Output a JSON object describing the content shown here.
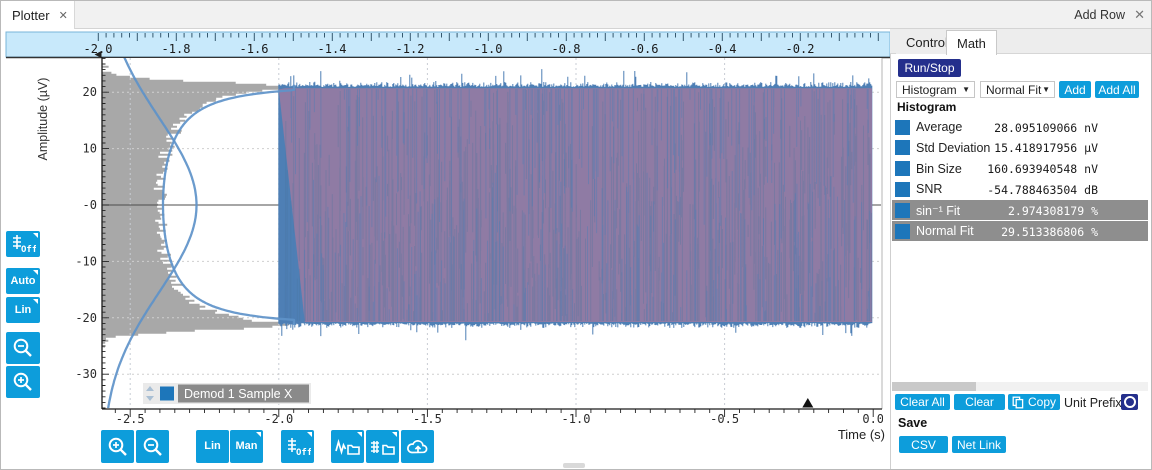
{
  "window": {
    "tab": "Plotter",
    "tab_close": "✕",
    "add_row": "Add Row",
    "add_row_close": "✕"
  },
  "colors": {
    "accent_blue": "#0d9ddb",
    "navy": "#242f8c",
    "ruler_bg": "#c8e9fb",
    "ruler_border": "#79b5d8",
    "histogram_gray": "#9c9c9c",
    "fit_curve_blue": "#5e93c9",
    "signal_purple": "#8f7ba4",
    "signal_blue": "#4e7fb5",
    "series_swatch_blue": "#1d76ba",
    "selected_row_gray": "#8e8e8e",
    "legend_label_bg": "#8a8a8a"
  },
  "left_toolbar": [
    {
      "name": "y-grid-off-button",
      "label": "Off",
      "icon": "grid-icon",
      "flyout": true
    },
    {
      "name": "y-scale-auto-button",
      "label": "Auto",
      "flyout": true
    },
    {
      "name": "y-scale-lin-button",
      "label": "Lin",
      "flyout": true
    },
    {
      "name": "y-zoom-out-button",
      "icon": "zoom-out-icon"
    },
    {
      "name": "y-zoom-in-button",
      "icon": "zoom-in-icon"
    }
  ],
  "bottom_toolbar": [
    {
      "name": "x-zoom-in-button",
      "icon": "zoom-in-icon"
    },
    {
      "name": "x-zoom-out-button",
      "icon": "zoom-out-icon"
    },
    {
      "name": "x-scale-lin-button",
      "label": "Lin"
    },
    {
      "name": "x-scale-man-button",
      "label": "Man",
      "flyout": true
    },
    {
      "name": "x-grid-off-button",
      "label": "Off",
      "icon": "grid-icon",
      "flyout": true
    },
    {
      "name": "export-wave-button",
      "icon": "wave-export-icon",
      "flyout": true
    },
    {
      "name": "export-table-button",
      "icon": "table-export-icon",
      "flyout": true
    },
    {
      "name": "cloud-upload-button",
      "icon": "cloud-upload-icon"
    }
  ],
  "right_panel": {
    "tabs": [
      "Control",
      "Math"
    ],
    "active_tab": "Math",
    "run_stop": "Run/Stop",
    "dropdown_source": "Histogram",
    "dropdown_fit": "Normal Fit",
    "dropdown_caret": "▼",
    "add_label": "Add",
    "add_all_label": "Add All",
    "section_header": "Histogram",
    "stats": [
      {
        "label": "Average",
        "value": "28.095109066",
        "unit": "nV",
        "selected": false
      },
      {
        "label": "Std Deviation",
        "value": "15.418917956",
        "unit": "µV",
        "selected": false
      },
      {
        "label": "Bin Size",
        "value": "160.693940548",
        "unit": "nV",
        "selected": false
      },
      {
        "label": "SNR",
        "value": "-54.788463504",
        "unit": "dB",
        "selected": false
      },
      {
        "label": "sin⁻¹ Fit",
        "value": "2.974308179",
        "unit": "%",
        "selected": true
      },
      {
        "label": "Normal Fit",
        "value": "29.513386806",
        "unit": "%",
        "selected": true
      }
    ],
    "buttons": {
      "clear_all": "Clear All",
      "clear": "Clear",
      "copy": "Copy",
      "unit_prefix": "Unit Prefix"
    },
    "save": {
      "label": "Save",
      "csv": "CSV",
      "net_link": "Net Link"
    }
  },
  "chart_data": {
    "type": "line",
    "xlabel": "Time (s)",
    "ylabel": "Amplitude (µV)",
    "x_ticks": [
      "-2.5",
      "-2.0",
      "-1.5",
      "-1.0",
      "-0.5",
      "0.0"
    ],
    "x_tick_values": [
      -2.5,
      -2.0,
      -1.5,
      -1.0,
      -0.5,
      0.0
    ],
    "y_ticks": [
      "20",
      "10",
      "-0",
      "-10",
      "-20",
      "-30"
    ],
    "y_tick_values": [
      20,
      10,
      0,
      -10,
      -20,
      -30
    ],
    "xlim": [
      -2.6,
      0.03
    ],
    "ylim": [
      -36.4,
      26.1
    ],
    "grid": "dotted",
    "overview_ruler": {
      "labels": [
        "-2.0",
        "-1.8",
        "-1.6",
        "-1.4",
        "-1.2",
        "-1.0",
        "-0.8",
        "-0.6",
        "-0.4",
        "-0.2"
      ],
      "values": [
        -2.0,
        -1.8,
        -1.6,
        -1.4,
        -1.2,
        -1.0,
        -0.8,
        -0.6,
        -0.4,
        -0.2
      ]
    },
    "series": [
      {
        "name": "Demod 1 Sample X",
        "color": "#1d76ba",
        "render": "minmax-envelope",
        "t_start": -2.0,
        "t_end": 0.0,
        "envelope_uv": 21,
        "mean": "28.095109066 nV",
        "std": "15.418917956 µV"
      }
    ],
    "histogram_overlay": {
      "orientation": "horizontal",
      "shape": "arcsine",
      "extent_uv": 21.9,
      "color": "#9c9c9c"
    },
    "fit_curves": [
      {
        "name": "sin⁻¹ Fit",
        "shape": "arcsine",
        "amplitude_uv": 21.45,
        "fit_pct": "2.974308179 %"
      },
      {
        "name": "Normal Fit",
        "shape": "gaussian",
        "mean_uv": 0,
        "sigma_uv": 15.419,
        "fit_pct": "29.513386806 %"
      }
    ],
    "axis_marker_t": -0.22,
    "legend": {
      "label": "Demod 1 Sample X"
    }
  }
}
